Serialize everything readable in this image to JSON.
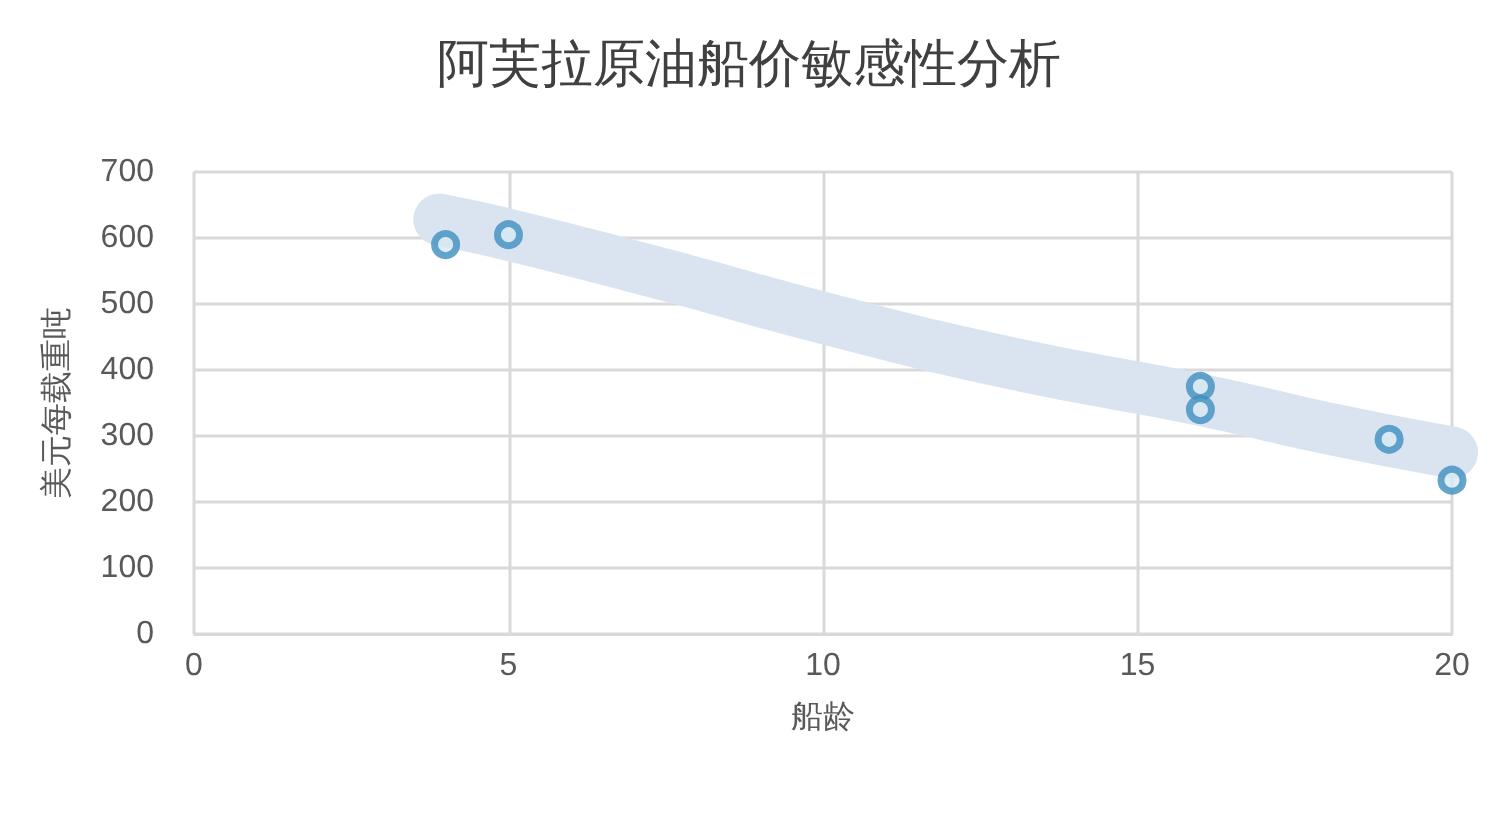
{
  "chart_data": {
    "type": "scatter",
    "title": "阿芙拉原油船价敏感性分析",
    "xlabel": "船龄",
    "ylabel": "美元每载重吨",
    "series": [
      {
        "color": "#3f8fbf",
        "marker": "circle",
        "x": [
          4,
          5,
          16,
          16,
          19,
          20
        ],
        "values": [
          590,
          605,
          375,
          340,
          295,
          233
        ]
      },
      {
        "type": "line",
        "color": "#dae4f1",
        "marker": "none",
        "x": [
          3.9,
          5,
          7.5,
          10,
          13,
          16,
          18,
          20
        ],
        "values": [
          628,
          605,
          544,
          479,
          410,
          355,
          312,
          275
        ]
      }
    ],
    "xlim": [
      0,
      20
    ],
    "xticks": [
      0,
      5,
      10,
      15,
      20
    ],
    "ylim": [
      0,
      700
    ],
    "yticks": [
      0,
      100,
      200,
      300,
      400,
      500,
      600,
      700
    ],
    "grid": true
  }
}
